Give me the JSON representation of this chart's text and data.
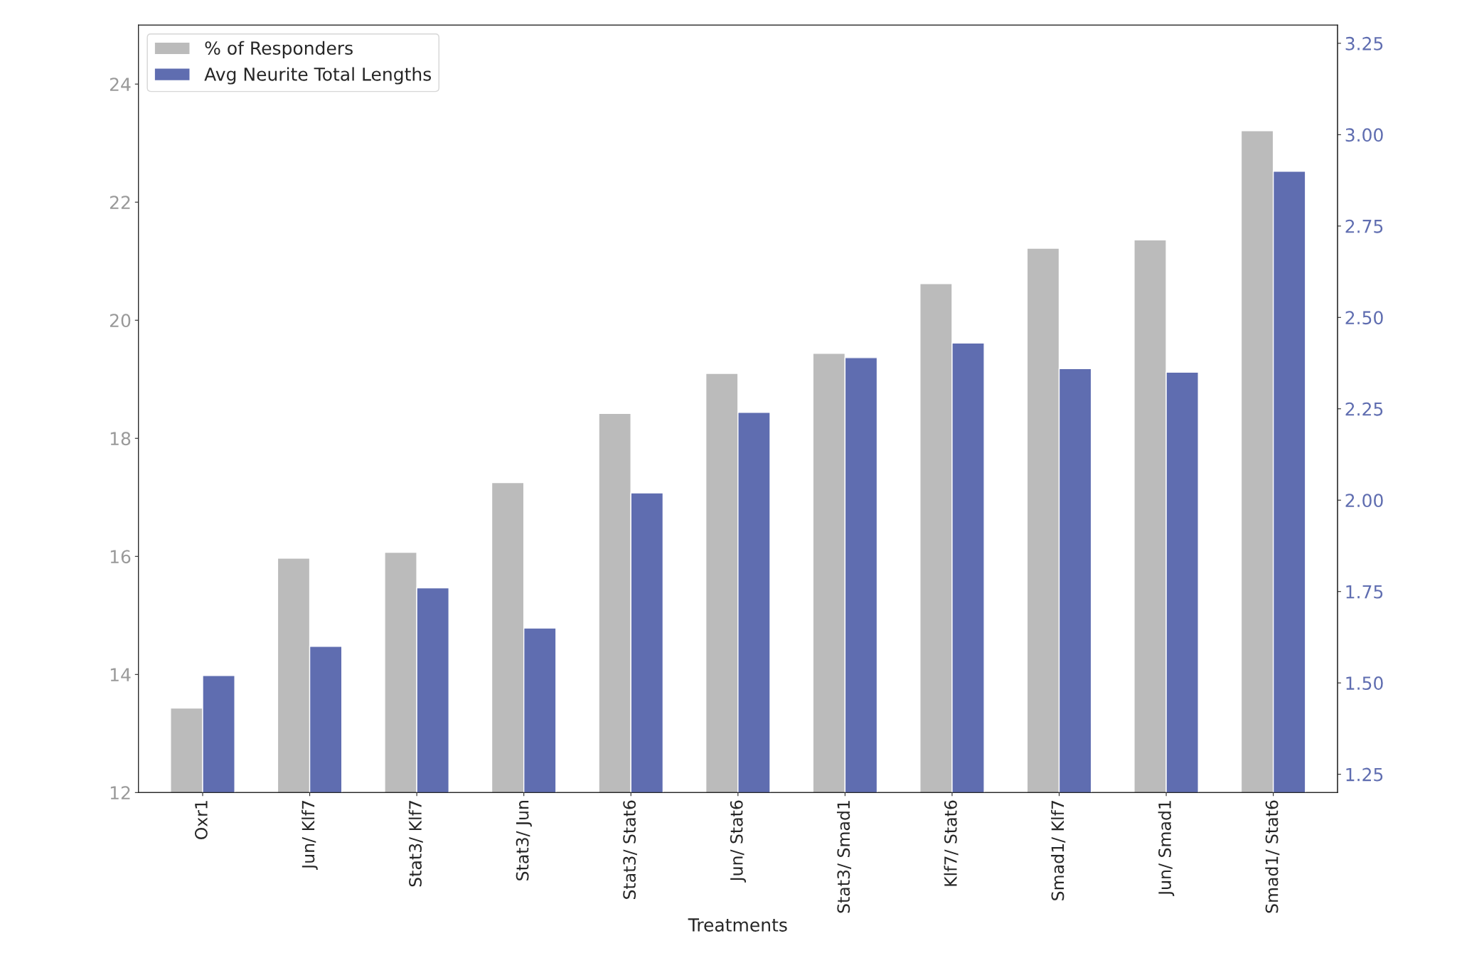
{
  "chart_data": {
    "type": "bar",
    "xlabel": "Treatments",
    "categories": [
      "Oxr1",
      "Jun/ Klf7",
      "Stat3/ Klf7",
      "Stat3/ Jun",
      "Stat3/ Stat6",
      "Jun/ Stat6",
      "Stat3/ Smad1",
      "Klf7/ Stat6",
      "Smad1/ Klf7",
      "Jun/ Smad1",
      "Smad1/ Stat6"
    ],
    "series": [
      {
        "name": "% of Responders",
        "color": "#bbbbbb",
        "values": [
          13.43,
          15.97,
          16.07,
          17.25,
          18.42,
          19.1,
          19.44,
          20.62,
          21.22,
          21.36,
          23.21
        ]
      },
      {
        "name": "Avg Neurite Total Lengths",
        "color": "#5f6db0",
        "axis": "y2",
        "values": [
          1.52,
          1.6,
          1.76,
          1.65,
          2.02,
          2.24,
          2.39,
          2.43,
          2.36,
          2.35,
          2.9
        ]
      }
    ],
    "ylim": [
      12,
      25
    ],
    "yticks": [
      12,
      14,
      16,
      18,
      20,
      22,
      24
    ],
    "y2lim": [
      1.2,
      3.3
    ],
    "y2ticks": [
      1.25,
      {
        "value": 1.5,
        "label": "1.50"
      },
      1.75,
      {
        "value": 2,
        "label": "2.00"
      },
      2.25,
      {
        "value": 2.5,
        "label": "2.50"
      },
      2.75,
      {
        "value": 3,
        "label": "3.00"
      },
      3.25
    ],
    "legend": "top left",
    "grid": false
  }
}
